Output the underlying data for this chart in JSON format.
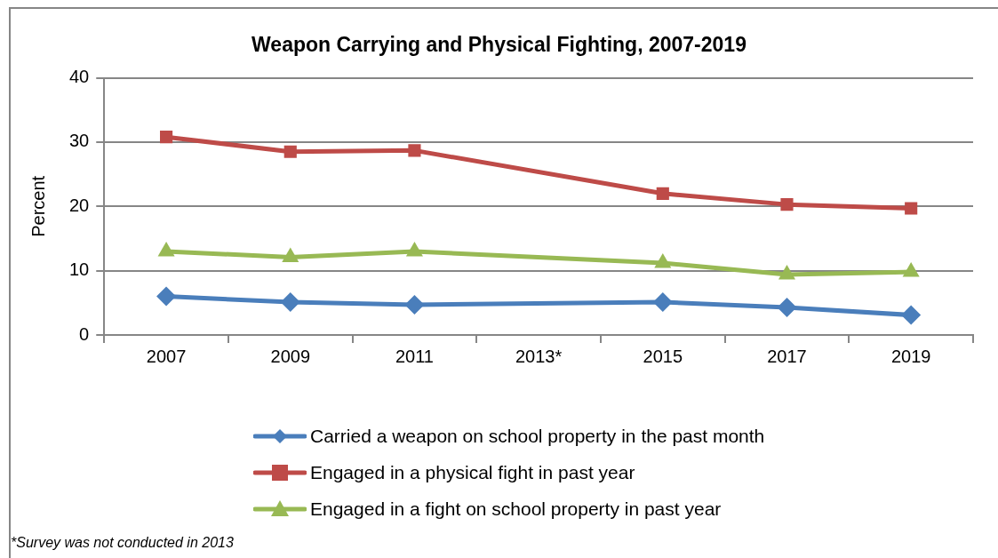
{
  "chart_data": {
    "type": "line",
    "title": "Weapon Carrying and Physical Fighting, 2007-2019",
    "ylabel": "Percent",
    "categories": [
      "2007",
      "2009",
      "2011",
      "2013*",
      "2015",
      "2017",
      "2019"
    ],
    "ylim": [
      0,
      40
    ],
    "yticks": [
      0,
      10,
      20,
      30,
      40
    ],
    "grid": "y",
    "legend": "bottom",
    "line_style": "solid",
    "series": [
      {
        "name": "Carried a weapon on school property in the past month",
        "color": "#4a7ebb",
        "marker": "diamond",
        "values": [
          6.0,
          5.1,
          4.7,
          null,
          5.1,
          4.3,
          3.1
        ]
      },
      {
        "name": "Engaged in a physical fight in past year",
        "color": "#be4b48",
        "marker": "square",
        "values": [
          30.8,
          28.5,
          28.7,
          null,
          22.0,
          20.3,
          19.7
        ]
      },
      {
        "name": "Engaged in a fight on school property in past year",
        "color": "#98b954",
        "marker": "triangle",
        "values": [
          13.0,
          12.1,
          13.0,
          null,
          11.2,
          9.4,
          9.8
        ]
      }
    ],
    "annotations": [
      "*Survey was not conducted in 2013"
    ]
  }
}
